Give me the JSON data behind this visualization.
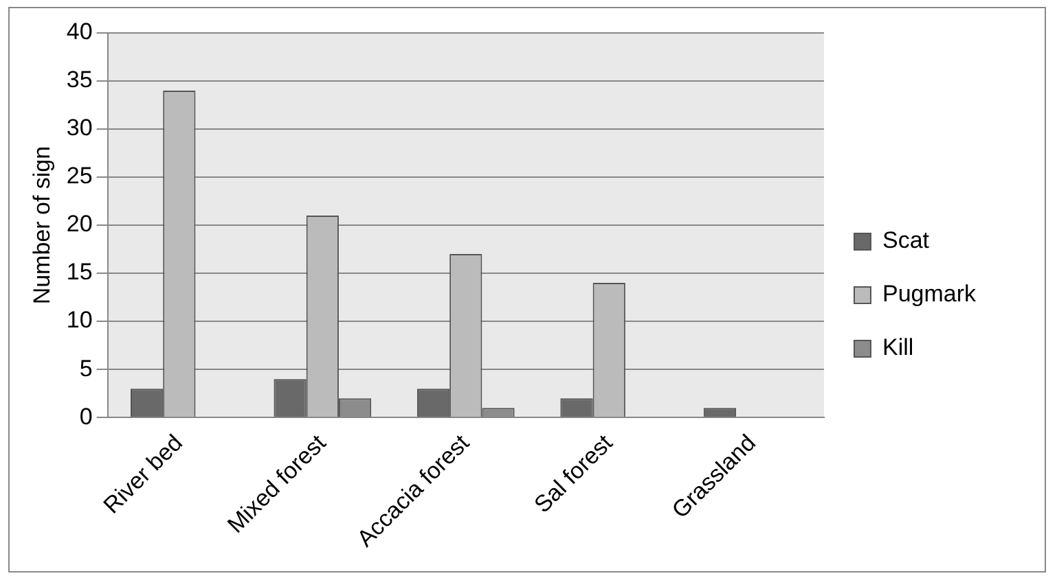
{
  "chart_data": {
    "type": "bar",
    "ylabel": "Number of sign",
    "categories": [
      "River bed",
      "Mixed forest",
      "Accacia forest",
      "Sal forest",
      "Grassland"
    ],
    "series": [
      {
        "name": "Scat",
        "color": "#696969",
        "values": [
          3,
          4,
          3,
          2,
          1
        ]
      },
      {
        "name": "Pugmark",
        "color": "#bbbbbb",
        "values": [
          34,
          21,
          17,
          14,
          0
        ]
      },
      {
        "name": "Kill",
        "color": "#8c8c8c",
        "values": [
          0,
          2,
          1,
          0,
          0
        ]
      }
    ],
    "ylim": [
      0,
      40
    ],
    "yticks": [
      0,
      5,
      10,
      15,
      20,
      25,
      30,
      35,
      40
    ],
    "grid": "y",
    "legend": "right"
  }
}
